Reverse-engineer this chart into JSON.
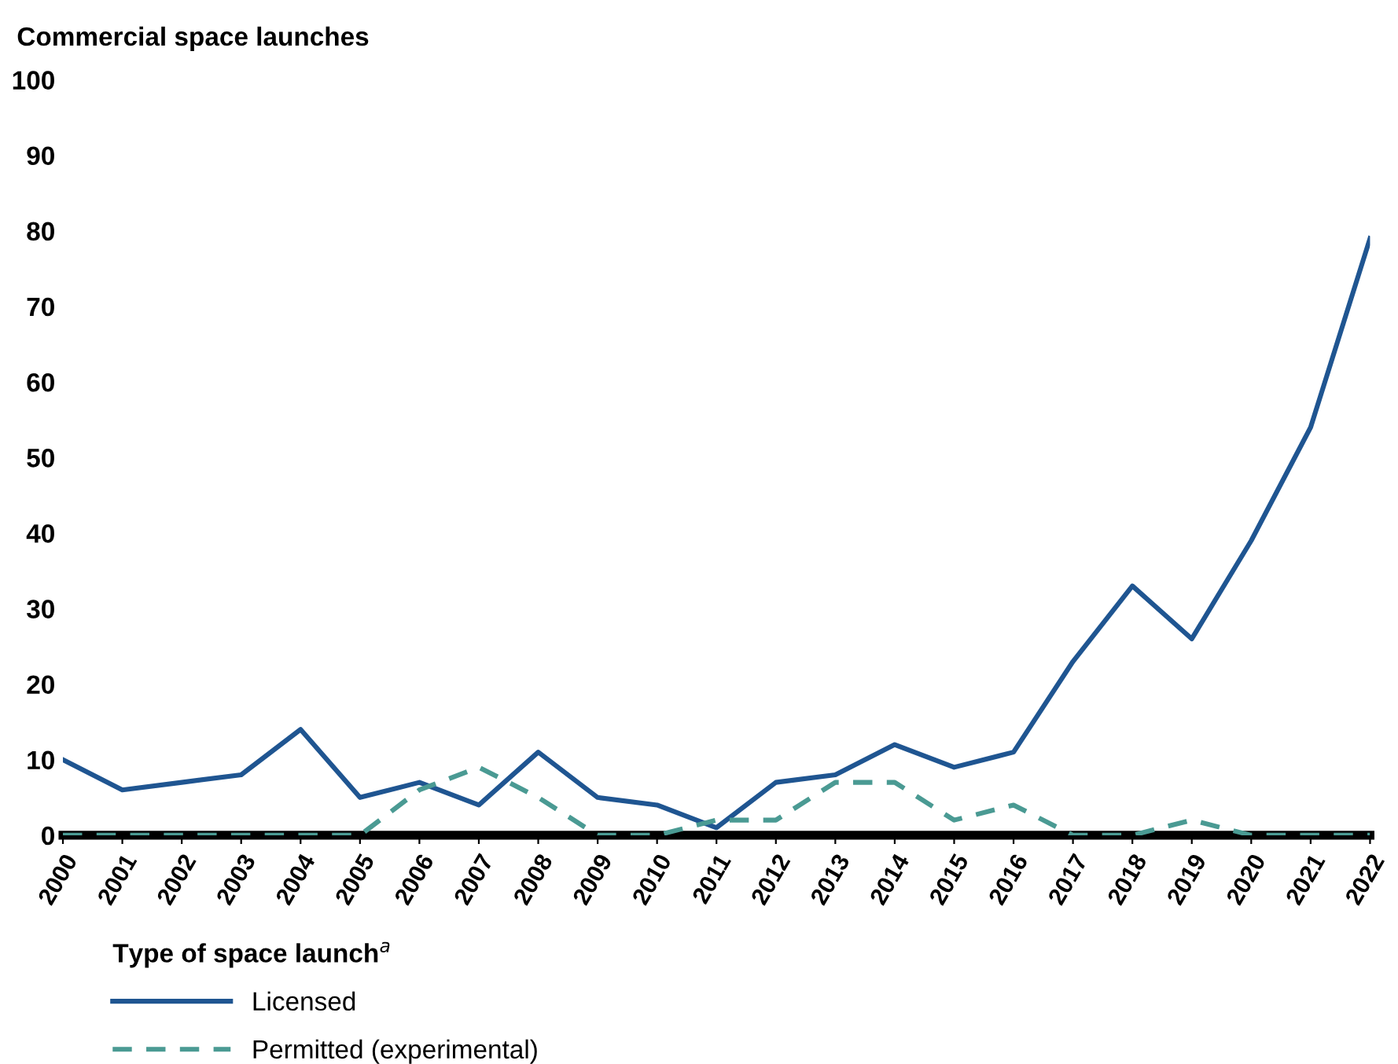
{
  "chart_data": {
    "type": "line",
    "ylabel": "Commercial space launches",
    "legend_title": "Type of space launch$^{a}$",
    "legend": "bottom",
    "grid": false,
    "marker": "none",
    "categories": [
      "2000",
      "2001",
      "2002",
      "2003",
      "2004",
      "2005",
      "2006",
      "2007",
      "2008",
      "2009",
      "2010",
      "2011",
      "2012",
      "2013",
      "2014",
      "2015",
      "2016",
      "2017",
      "2018",
      "2019",
      "2020",
      "2021",
      "2022"
    ],
    "ylim": [
      0,
      100
    ],
    "yticks": [
      0,
      10,
      20,
      30,
      40,
      50,
      60,
      70,
      80,
      90,
      100
    ],
    "series": [
      {
        "name": "Licensed",
        "color": "#1f5591",
        "line_style": "solid",
        "values": [
          10,
          6,
          7,
          8,
          14,
          5,
          7,
          4,
          11,
          5,
          4,
          1,
          7,
          8,
          12,
          9,
          11,
          23,
          33,
          26,
          39,
          54,
          79
        ]
      },
      {
        "name": "Permitted (experimental)",
        "color": "#4a9a93",
        "line_style": "dashed",
        "values": [
          0,
          0,
          0,
          0,
          0,
          0,
          6,
          9,
          5,
          0,
          0,
          2,
          2,
          7,
          7,
          2,
          4,
          0,
          0,
          2,
          0,
          0,
          0
        ]
      }
    ]
  }
}
